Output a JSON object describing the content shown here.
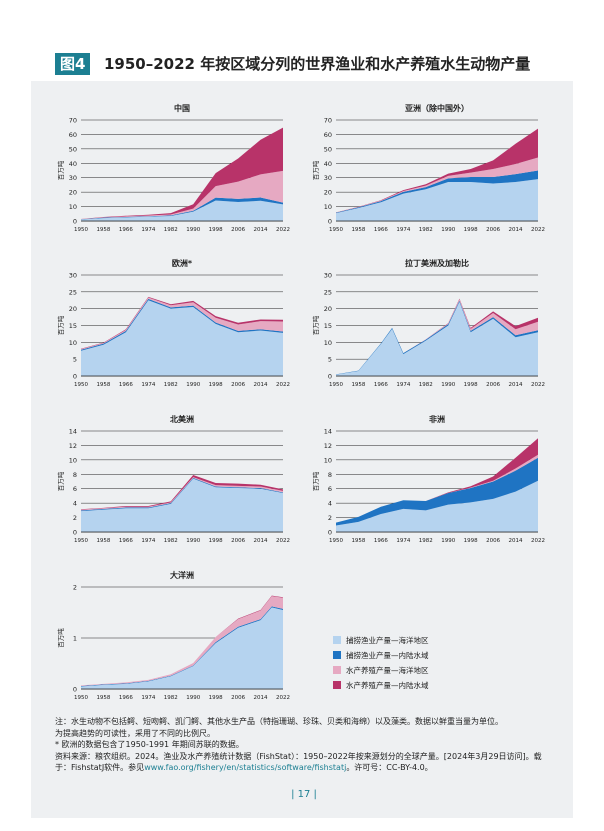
{
  "figure": {
    "badge": "图4",
    "title": "1950–2022 年按区域分列的世界渔业和水产养殖水生动物产量"
  },
  "colors": {
    "capture_marine": "#b5d3ef",
    "capture_inland": "#1f74c3",
    "aqua_marine": "#e6a9c2",
    "aqua_inland": "#b83369"
  },
  "legend": {
    "items": [
      {
        "label": "捕捞渔业产量—海洋地区",
        "color_key": "capture_marine"
      },
      {
        "label": "捕捞渔业产量—内陆水域",
        "color_key": "capture_inland"
      },
      {
        "label": "水产养殖产量—海洋地区",
        "color_key": "aqua_marine"
      },
      {
        "label": "水产养殖产量—内陆水域",
        "color_key": "aqua_inland"
      }
    ]
  },
  "chart_data": [
    {
      "type": "area",
      "title": "中国",
      "ylabel": "百万吨",
      "ylim": [
        0,
        70
      ],
      "yticks": [
        0,
        10,
        20,
        30,
        40,
        50,
        60,
        70
      ],
      "x": [
        1950,
        1958,
        1966,
        1974,
        1982,
        1990,
        1998,
        2006,
        2014,
        2022
      ],
      "series": [
        {
          "name": "捕捞渔业产量—海洋地区",
          "values": [
            1,
            2,
            2.5,
            3,
            3.5,
            6.5,
            14.2,
            13.2,
            14,
            11.5
          ]
        },
        {
          "name": "捕捞渔业产量—内陆水域",
          "values": [
            0.2,
            0.3,
            0.3,
            0.3,
            0.4,
            0.6,
            2,
            2.1,
            2.3,
            1.2
          ]
        },
        {
          "name": "水产养殖产量—海洋地区",
          "values": [
            0.1,
            0.2,
            0.4,
            0.5,
            0.6,
            1.5,
            8,
            12,
            16,
            22
          ]
        },
        {
          "name": "水产养殖产量—内陆水域",
          "values": [
            0.1,
            0.3,
            0.4,
            0.5,
            1,
            3,
            9,
            16,
            24,
            30
          ]
        }
      ]
    },
    {
      "type": "area",
      "title": "亚洲（除中国外）",
      "ylabel": "百万吨",
      "ylim": [
        0,
        70
      ],
      "yticks": [
        0,
        10,
        20,
        30,
        40,
        50,
        60,
        70
      ],
      "x": [
        1950,
        1958,
        1966,
        1974,
        1982,
        1990,
        1998,
        2006,
        2014,
        2022
      ],
      "series": [
        {
          "name": "捕捞渔业产量—海洋地区",
          "values": [
            5.5,
            9,
            13,
            19,
            22,
            27,
            27,
            26,
            27,
            29
          ]
        },
        {
          "name": "捕捞渔业产量—内陆水域",
          "values": [
            0.3,
            0.5,
            0.8,
            1.2,
            1.5,
            2.5,
            3.5,
            4.5,
            5.5,
            6
          ]
        },
        {
          "name": "水产养殖产量—海洋地区",
          "values": [
            0.1,
            0.2,
            0.3,
            0.6,
            1,
            1.8,
            3,
            5.5,
            7,
            9
          ]
        },
        {
          "name": "水产养殖产量—内陆水域",
          "values": [
            0.1,
            0.2,
            0.3,
            0.6,
            1,
            1.5,
            2.5,
            6,
            14,
            20
          ]
        }
      ]
    },
    {
      "type": "area",
      "title": "欧洲*",
      "ylabel": "百万吨",
      "ylim": [
        0,
        30
      ],
      "yticks": [
        0,
        5,
        10,
        15,
        20,
        25,
        30
      ],
      "x": [
        1950,
        1958,
        1966,
        1974,
        1982,
        1990,
        1998,
        2006,
        2014,
        2022
      ],
      "series": [
        {
          "name": "捕捞渔业产量—海洋地区",
          "values": [
            7.5,
            9.3,
            13,
            22.5,
            20,
            20.5,
            15.5,
            13,
            13.5,
            12.8
          ]
        },
        {
          "name": "捕捞渔业产量—内陆水域",
          "values": [
            0.3,
            0.3,
            0.4,
            0.4,
            0.4,
            0.4,
            0.4,
            0.4,
            0.4,
            0.4
          ]
        },
        {
          "name": "水产养殖产量—海洋地区",
          "values": [
            0.2,
            0.2,
            0.3,
            0.4,
            0.6,
            1,
            1.4,
            1.9,
            2.4,
            3
          ]
        },
        {
          "name": "水产养殖产量—内陆水域",
          "values": [
            0.1,
            0.1,
            0.2,
            0.2,
            0.3,
            0.4,
            0.5,
            0.5,
            0.5,
            0.5
          ]
        }
      ]
    },
    {
      "type": "area",
      "title": "拉丁美洲及加勒比",
      "ylabel": "百万吨",
      "ylim": [
        0,
        30
      ],
      "yticks": [
        0,
        5,
        10,
        15,
        20,
        25,
        30
      ],
      "x": [
        1950,
        1958,
        1966,
        1970,
        1974,
        1982,
        1990,
        1994,
        1998,
        2006,
        2014,
        2022
      ],
      "series": [
        {
          "name": "捕捞渔业产量—海洋地区",
          "values": [
            0.4,
            1.5,
            9.5,
            14,
            6.5,
            10.5,
            15,
            22,
            13,
            17,
            11.5,
            13
          ]
        },
        {
          "name": "捕捞渔业产量—内陆水域",
          "values": [
            0.1,
            0.1,
            0.2,
            0.3,
            0.3,
            0.3,
            0.4,
            0.4,
            0.4,
            0.5,
            0.6,
            0.6
          ]
        },
        {
          "name": "水产养殖产量—海洋地区",
          "values": [
            0,
            0,
            0,
            0,
            0,
            0.1,
            0.2,
            0.4,
            0.6,
            1.2,
            1.8,
            2.5
          ]
        },
        {
          "name": "水产养殖产量—内陆水域",
          "values": [
            0,
            0,
            0,
            0,
            0,
            0,
            0.1,
            0.2,
            0.3,
            0.5,
            0.9,
            1.2
          ]
        }
      ]
    },
    {
      "type": "area",
      "title": "北美洲",
      "ylabel": "百万吨",
      "ylim": [
        0,
        14
      ],
      "yticks": [
        0,
        2,
        4,
        6,
        8,
        10,
        12,
        14
      ],
      "x": [
        1950,
        1958,
        1966,
        1974,
        1982,
        1990,
        1998,
        2006,
        2014,
        2022
      ],
      "series": [
        {
          "name": "捕捞渔业产量—海洋地区",
          "values": [
            2.9,
            3.1,
            3.3,
            3.3,
            3.9,
            7.4,
            6.2,
            6.1,
            6.0,
            5.4
          ]
        },
        {
          "name": "捕捞渔业产量—内陆水域",
          "values": [
            0.1,
            0.1,
            0.1,
            0.1,
            0.1,
            0.1,
            0.1,
            0.1,
            0.1,
            0.1
          ]
        },
        {
          "name": "水产养殖产量—海洋地区",
          "values": [
            0.1,
            0.1,
            0.1,
            0.1,
            0.1,
            0.1,
            0.2,
            0.2,
            0.2,
            0.2
          ]
        },
        {
          "name": "水产养殖产量—内陆水域",
          "values": [
            0.05,
            0.05,
            0.1,
            0.1,
            0.15,
            0.3,
            0.3,
            0.3,
            0.25,
            0.2
          ]
        }
      ]
    },
    {
      "type": "area",
      "title": "非洲",
      "ylabel": "百万吨",
      "ylim": [
        0,
        14
      ],
      "yticks": [
        0,
        2,
        4,
        6,
        8,
        10,
        12,
        14
      ],
      "x": [
        1950,
        1958,
        1966,
        1974,
        1982,
        1990,
        1998,
        2006,
        2014,
        2022
      ],
      "series": [
        {
          "name": "捕捞渔业产量—海洋地区",
          "values": [
            0.9,
            1.4,
            2.5,
            3.2,
            3.0,
            3.8,
            4.1,
            4.6,
            5.6,
            7.1
          ]
        },
        {
          "name": "捕捞渔业产量—内陆水域",
          "values": [
            0.4,
            0.7,
            1.0,
            1.2,
            1.3,
            1.6,
            2.0,
            2.4,
            2.9,
            3.2
          ]
        },
        {
          "name": "水产养殖产量—海洋地区",
          "values": [
            0,
            0,
            0,
            0,
            0,
            0,
            0.05,
            0.1,
            0.3,
            0.4
          ]
        },
        {
          "name": "水产养殖产量—内陆水域",
          "values": [
            0,
            0,
            0,
            0,
            0,
            0.1,
            0.2,
            0.6,
            1.5,
            2.3
          ]
        }
      ]
    },
    {
      "type": "area",
      "title": "大洋洲",
      "ylabel": "百万吨",
      "ylim": [
        0,
        2
      ],
      "yticks": [
        0,
        1,
        2
      ],
      "x": [
        1950,
        1958,
        1966,
        1974,
        1982,
        1990,
        1998,
        2006,
        2014,
        2018,
        2022
      ],
      "series": [
        {
          "name": "捕捞渔业产量—海洋地区",
          "values": [
            0.05,
            0.08,
            0.1,
            0.15,
            0.25,
            0.45,
            0.9,
            1.2,
            1.35,
            1.6,
            1.55
          ]
        },
        {
          "name": "捕捞渔业产量—内陆水域",
          "values": [
            0.01,
            0.01,
            0.01,
            0.01,
            0.01,
            0.01,
            0.02,
            0.02,
            0.02,
            0.02,
            0.02
          ]
        },
        {
          "name": "水产养殖产量—海洋地区",
          "values": [
            0.01,
            0.01,
            0.02,
            0.02,
            0.03,
            0.05,
            0.1,
            0.15,
            0.17,
            0.2,
            0.22
          ]
        },
        {
          "name": "水产养殖产量—内陆水域",
          "values": [
            0,
            0,
            0,
            0,
            0,
            0,
            0,
            0.01,
            0.01,
            0.01,
            0.01
          ]
        }
      ]
    }
  ],
  "notes": {
    "line1": "注：水生动物不包括鳄、短吻鳄、凯门鳄、其他水生产品（特指珊瑚、珍珠、贝类和海绵）以及藻类。数据以鲜重当量为单位。",
    "line2": "为提高趋势的可读性，采用了不同的比例尺。",
    "line3": "* 欧洲的数据包含了1950-1991 年期间苏联的数据。",
    "source_text": "资料来源：粮农组织。2024。渔业及水产养殖统计数据（FishStat）：1950–2022年按来源划分的全球产量。[2024年3月29日访问]。载于：FishstatJ软件。参见",
    "source_link": "www.fao.org/fishery/en/statistics/software/fishstatj",
    "source_tail": "。许可号：CC-BY-4.0。"
  },
  "page": {
    "number": "| 17 |"
  }
}
